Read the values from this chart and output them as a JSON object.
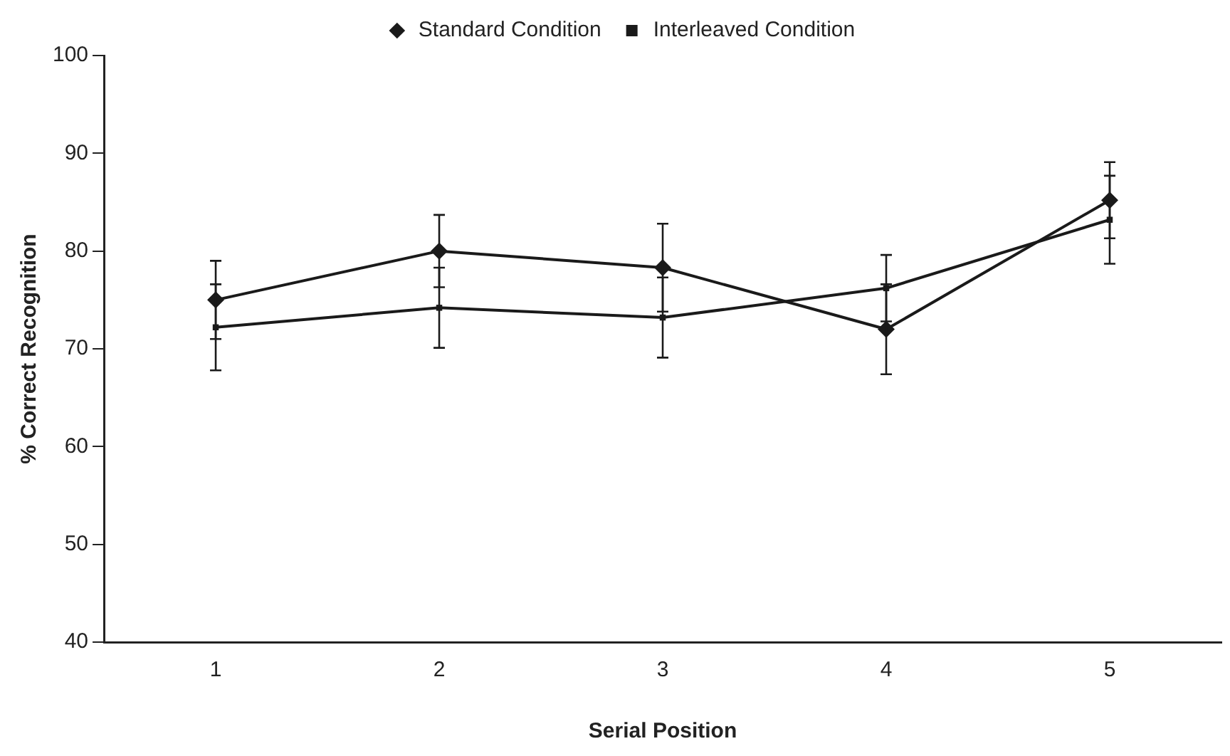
{
  "chart_data": {
    "type": "line",
    "xlabel": "Serial Position",
    "ylabel": "% Correct Recognition",
    "categories": [
      "1",
      "2",
      "3",
      "4",
      "5"
    ],
    "series": [
      {
        "name": "Standard Condition",
        "color": "#1a1a1a",
        "marker": "diamond",
        "values": [
          75,
          80,
          78.3,
          72,
          85.2
        ],
        "errors": [
          4,
          3.7,
          4.5,
          4.6,
          3.9
        ]
      },
      {
        "name": "Interleaved Condition",
        "color": "#1a1a1a",
        "marker": "square",
        "values": [
          72.2,
          74.2,
          73.2,
          76.2,
          83.2
        ],
        "errors": [
          4.4,
          4.1,
          4.1,
          3.4,
          4.5
        ]
      }
    ],
    "ylim": [
      40,
      100
    ],
    "yticks": [
      40,
      50,
      60,
      70,
      80,
      90,
      100
    ],
    "grid": false,
    "legend": "top",
    "line_style": "solid"
  }
}
